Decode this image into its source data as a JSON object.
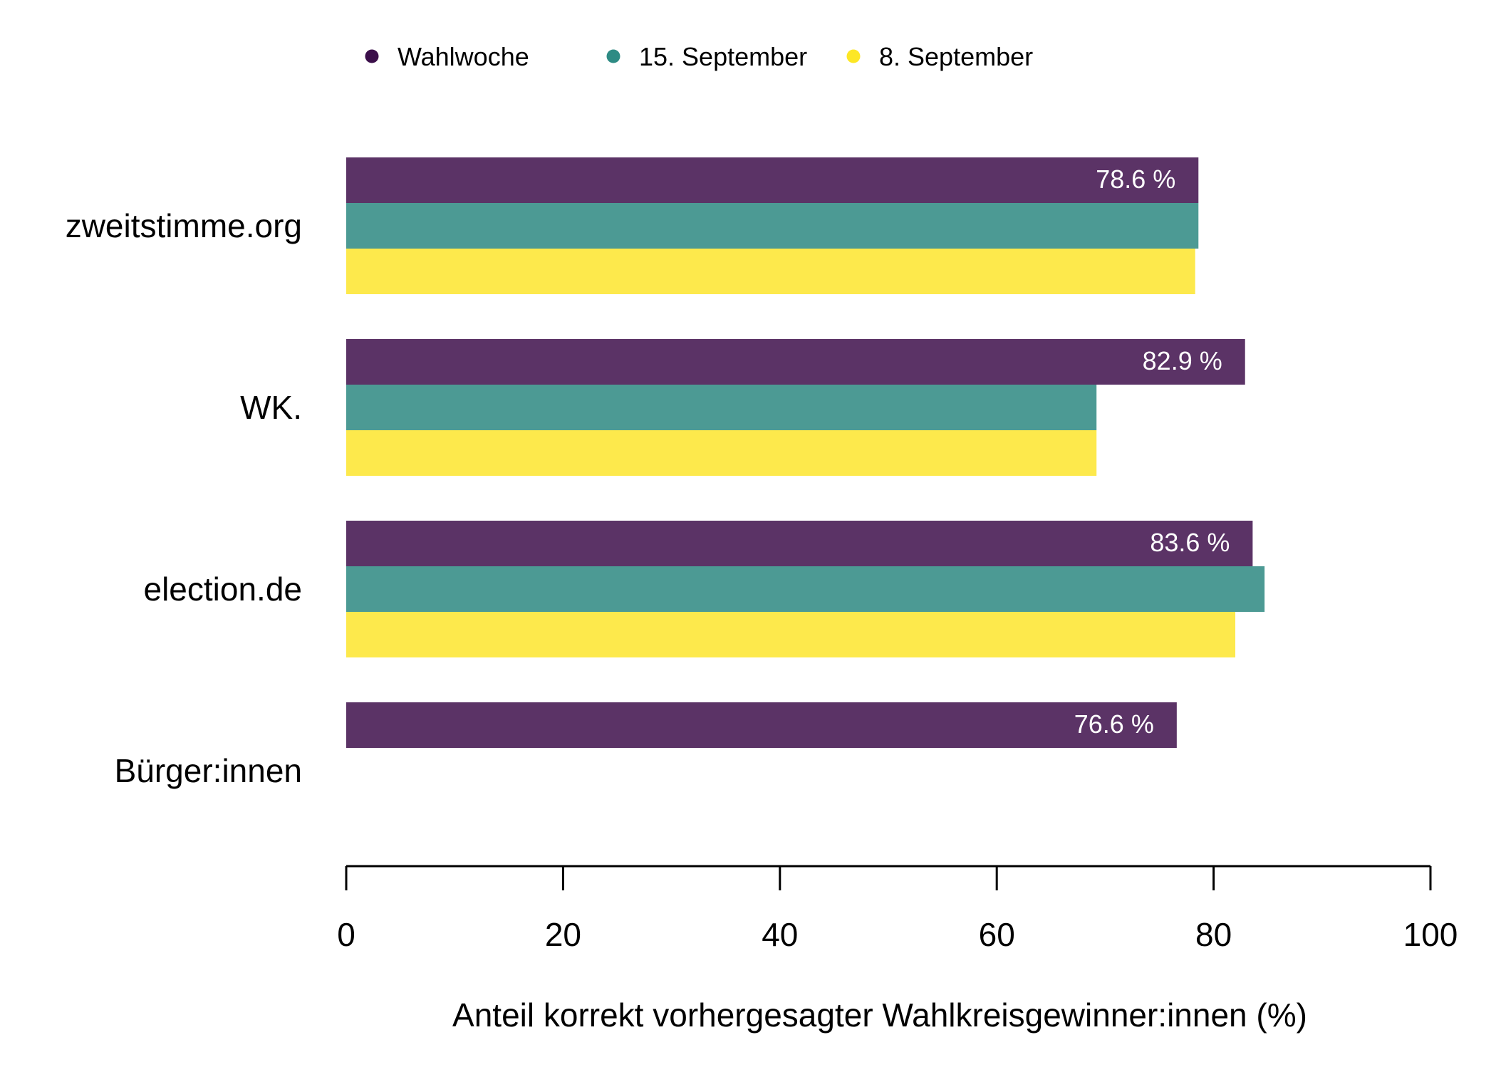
{
  "chart_data": {
    "type": "bar",
    "orientation": "horizontal",
    "title": "",
    "xlabel": "Anteil korrekt vorhergesagter Wahlkreisgewinner:innen (%)",
    "ylabel": "",
    "xlim": [
      0,
      100
    ],
    "xticks": [
      0,
      20,
      40,
      60,
      80,
      100
    ],
    "grid": false,
    "legend_position": "top",
    "categories": [
      "zweitstimme.org",
      "WK.",
      "election.de",
      "Bürger:innen"
    ],
    "series": [
      {
        "name": "Wahlwoche",
        "color": "#5b3366",
        "values": [
          78.6,
          82.9,
          83.6,
          76.6
        ]
      },
      {
        "name": "15. September",
        "color": "#4c9a94",
        "values": [
          78.6,
          69.2,
          84.7,
          null
        ]
      },
      {
        "name": "8. September",
        "color": "#fde94c",
        "values": [
          78.3,
          69.2,
          82.0,
          null
        ]
      }
    ],
    "data_labels": {
      "series": "Wahlwoche",
      "values": [
        "78.6 %",
        "82.9 %",
        "83.6 %",
        "76.6 %"
      ],
      "color": "#ffffff"
    },
    "legend_marker_colors": [
      "#3b0f4a",
      "#2e8b84",
      "#fde725"
    ]
  }
}
